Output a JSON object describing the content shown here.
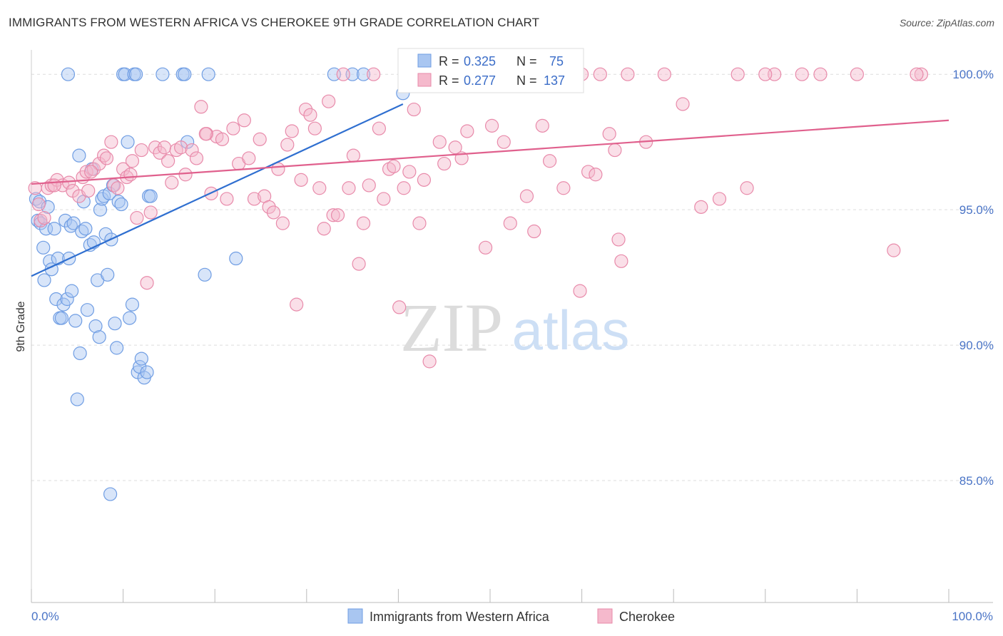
{
  "chart_data": {
    "type": "scatter",
    "title": "IMMIGRANTS FROM WESTERN AFRICA VS CHEROKEE 9TH GRADE CORRELATION CHART",
    "source": "Source: ZipAtlas.com",
    "ylabel": "9th Grade",
    "xlim": [
      0,
      100
    ],
    "ylim": [
      80.5,
      100.9
    ],
    "y_ticks": [
      {
        "value": 100,
        "label": "100.0%"
      },
      {
        "value": 95,
        "label": "95.0%"
      },
      {
        "value": 90,
        "label": "90.0%"
      },
      {
        "value": 85,
        "label": "85.0%"
      }
    ],
    "x_tick_labels": {
      "left": "0.0%",
      "right": "100.0%"
    },
    "x_minor_ticks": [
      0,
      10,
      20,
      30,
      40,
      50,
      60,
      70,
      80,
      90,
      100
    ],
    "watermark": {
      "zip": "ZIP",
      "atlas": "atlas"
    },
    "legend": {
      "r_label": "R =",
      "n_label": "N =",
      "entries": [
        {
          "r": "0.325",
          "n": "75"
        },
        {
          "r": "0.277",
          "n": "137"
        }
      ]
    },
    "series": [
      {
        "name": "Immigrants from Western Africa",
        "color": "#6f9de3",
        "fill": "#a9c6f1",
        "trend": {
          "x0": 0,
          "y0": 92.55,
          "x1": 40.5,
          "y1": 98.9
        },
        "points": [
          [
            0.5,
            95.4
          ],
          [
            0.7,
            94.6
          ],
          [
            0.9,
            95.3
          ],
          [
            1.0,
            94.5
          ],
          [
            1.3,
            93.6
          ],
          [
            1.4,
            92.4
          ],
          [
            1.6,
            94.3
          ],
          [
            1.8,
            95.1
          ],
          [
            2.0,
            93.1
          ],
          [
            2.2,
            92.8
          ],
          [
            2.5,
            94.3
          ],
          [
            2.7,
            91.7
          ],
          [
            2.9,
            93.2
          ],
          [
            3.1,
            91.0
          ],
          [
            3.3,
            91.0
          ],
          [
            3.5,
            91.5
          ],
          [
            3.7,
            94.6
          ],
          [
            3.9,
            91.7
          ],
          [
            4.1,
            93.2
          ],
          [
            4.3,
            94.4
          ],
          [
            4.4,
            92.0
          ],
          [
            4.6,
            94.5
          ],
          [
            4.8,
            90.9
          ],
          [
            5.0,
            88.0
          ],
          [
            5.2,
            97.0
          ],
          [
            5.3,
            89.7
          ],
          [
            5.5,
            94.2
          ],
          [
            5.7,
            95.3
          ],
          [
            5.9,
            94.3
          ],
          [
            6.1,
            91.3
          ],
          [
            6.4,
            93.7
          ],
          [
            6.6,
            96.5
          ],
          [
            6.8,
            93.8
          ],
          [
            7.0,
            90.7
          ],
          [
            7.2,
            92.4
          ],
          [
            7.4,
            90.3
          ],
          [
            7.5,
            95.0
          ],
          [
            7.7,
            95.4
          ],
          [
            7.9,
            95.5
          ],
          [
            8.1,
            94.1
          ],
          [
            8.3,
            92.6
          ],
          [
            8.5,
            95.6
          ],
          [
            8.7,
            93.9
          ],
          [
            8.9,
            95.9
          ],
          [
            9.1,
            90.8
          ],
          [
            9.3,
            89.9
          ],
          [
            9.5,
            95.3
          ],
          [
            9.8,
            95.2
          ],
          [
            10.0,
            100.0
          ],
          [
            10.2,
            100.0
          ],
          [
            10.5,
            97.5
          ],
          [
            10.7,
            91.0
          ],
          [
            11.0,
            91.5
          ],
          [
            11.2,
            100.0
          ],
          [
            11.4,
            100.0
          ],
          [
            11.6,
            89.0
          ],
          [
            11.8,
            89.2
          ],
          [
            12.0,
            89.5
          ],
          [
            12.3,
            88.8
          ],
          [
            12.6,
            89.0
          ],
          [
            12.8,
            95.5
          ],
          [
            13.0,
            95.5
          ],
          [
            14.3,
            100.0
          ],
          [
            16.5,
            100.0
          ],
          [
            16.7,
            100.0
          ],
          [
            17.0,
            97.5
          ],
          [
            18.9,
            92.6
          ],
          [
            19.3,
            100.0
          ],
          [
            22.3,
            93.2
          ],
          [
            33.0,
            100.0
          ],
          [
            35.0,
            100.0
          ],
          [
            36.2,
            100.0
          ],
          [
            40.5,
            99.3
          ],
          [
            8.6,
            84.5
          ],
          [
            4.0,
            100.0
          ]
        ]
      },
      {
        "name": "Cherokee",
        "color": "#e88aaa",
        "fill": "#f5b9cc",
        "trend": {
          "x0": 0,
          "y0": 95.95,
          "x1": 100,
          "y1": 98.3
        },
        "points": [
          [
            0.4,
            95.8
          ],
          [
            0.8,
            95.2
          ],
          [
            1.0,
            94.6
          ],
          [
            1.4,
            94.7
          ],
          [
            1.8,
            95.8
          ],
          [
            2.2,
            95.9
          ],
          [
            2.8,
            96.1
          ],
          [
            3.4,
            95.9
          ],
          [
            4.1,
            96.0
          ],
          [
            4.5,
            95.7
          ],
          [
            5.2,
            95.5
          ],
          [
            5.6,
            96.2
          ],
          [
            6.0,
            96.4
          ],
          [
            6.2,
            95.7
          ],
          [
            6.8,
            96.5
          ],
          [
            7.4,
            96.7
          ],
          [
            7.9,
            97.0
          ],
          [
            8.2,
            96.9
          ],
          [
            8.7,
            97.5
          ],
          [
            9.0,
            95.9
          ],
          [
            9.4,
            95.8
          ],
          [
            10.0,
            96.5
          ],
          [
            10.4,
            96.2
          ],
          [
            11.0,
            96.8
          ],
          [
            11.5,
            94.7
          ],
          [
            12.0,
            97.2
          ],
          [
            12.6,
            92.3
          ],
          [
            13.0,
            94.9
          ],
          [
            13.5,
            97.3
          ],
          [
            14.0,
            97.1
          ],
          [
            14.5,
            97.3
          ],
          [
            14.9,
            96.8
          ],
          [
            15.3,
            96.0
          ],
          [
            15.8,
            97.2
          ],
          [
            16.3,
            97.3
          ],
          [
            16.8,
            96.3
          ],
          [
            17.5,
            97.2
          ],
          [
            18.0,
            96.9
          ],
          [
            18.5,
            98.8
          ],
          [
            19.1,
            97.8
          ],
          [
            19.6,
            95.6
          ],
          [
            20.2,
            97.7
          ],
          [
            20.8,
            97.6
          ],
          [
            21.3,
            95.4
          ],
          [
            22.0,
            98.0
          ],
          [
            22.6,
            96.7
          ],
          [
            23.2,
            98.3
          ],
          [
            23.7,
            96.9
          ],
          [
            24.3,
            95.4
          ],
          [
            24.9,
            97.6
          ],
          [
            25.4,
            95.5
          ],
          [
            25.9,
            95.1
          ],
          [
            26.4,
            94.9
          ],
          [
            26.9,
            96.5
          ],
          [
            27.4,
            94.5
          ],
          [
            27.9,
            97.4
          ],
          [
            28.4,
            97.9
          ],
          [
            28.9,
            91.5
          ],
          [
            29.4,
            96.1
          ],
          [
            29.9,
            98.7
          ],
          [
            30.4,
            98.5
          ],
          [
            30.9,
            98.0
          ],
          [
            31.4,
            95.8
          ],
          [
            31.9,
            94.3
          ],
          [
            32.4,
            99.0
          ],
          [
            32.9,
            94.8
          ],
          [
            33.4,
            94.8
          ],
          [
            34.0,
            100.0
          ],
          [
            34.6,
            95.8
          ],
          [
            35.1,
            97.0
          ],
          [
            35.7,
            93.0
          ],
          [
            36.2,
            94.5
          ],
          [
            36.8,
            95.9
          ],
          [
            37.3,
            100.0
          ],
          [
            37.9,
            98.0
          ],
          [
            38.4,
            95.4
          ],
          [
            39.0,
            96.5
          ],
          [
            39.5,
            96.6
          ],
          [
            40.1,
            91.4
          ],
          [
            40.6,
            95.8
          ],
          [
            41.2,
            96.4
          ],
          [
            41.7,
            98.7
          ],
          [
            42.3,
            94.5
          ],
          [
            42.8,
            96.1
          ],
          [
            43.4,
            89.4
          ],
          [
            43.9,
            100.0
          ],
          [
            44.5,
            97.5
          ],
          [
            45.0,
            96.7
          ],
          [
            45.6,
            100.0
          ],
          [
            46.2,
            97.3
          ],
          [
            46.9,
            96.9
          ],
          [
            47.5,
            97.9
          ],
          [
            48.2,
            100.0
          ],
          [
            48.9,
            100.0
          ],
          [
            49.5,
            93.6
          ],
          [
            50.2,
            98.1
          ],
          [
            50.9,
            100.0
          ],
          [
            51.5,
            97.5
          ],
          [
            52.2,
            94.5
          ],
          [
            53.1,
            100.0
          ],
          [
            54.0,
            95.5
          ],
          [
            54.8,
            94.2
          ],
          [
            55.7,
            98.1
          ],
          [
            56.5,
            96.8
          ],
          [
            57.3,
            100.0
          ],
          [
            58.0,
            95.8
          ],
          [
            58.8,
            100.0
          ],
          [
            59.8,
            92.0
          ],
          [
            60.7,
            96.4
          ],
          [
            61.5,
            96.3
          ],
          [
            62.0,
            100.0
          ],
          [
            63.0,
            97.8
          ],
          [
            63.6,
            97.2
          ],
          [
            64.0,
            93.9
          ],
          [
            64.3,
            93.1
          ],
          [
            65.0,
            100.0
          ],
          [
            67.0,
            97.5
          ],
          [
            69.0,
            100.0
          ],
          [
            71.0,
            98.9
          ],
          [
            73.0,
            95.1
          ],
          [
            75.0,
            95.4
          ],
          [
            77.0,
            100.0
          ],
          [
            78.0,
            95.8
          ],
          [
            81.0,
            100.0
          ],
          [
            84.0,
            100.0
          ],
          [
            86.0,
            100.0
          ],
          [
            90.0,
            100.0
          ],
          [
            94.0,
            93.5
          ],
          [
            97.0,
            100.0
          ],
          [
            2.5,
            95.9
          ],
          [
            6.5,
            96.4
          ],
          [
            10.8,
            96.3
          ],
          [
            19.0,
            97.8
          ],
          [
            55.0,
            100.0
          ],
          [
            60.0,
            100.0
          ],
          [
            80.0,
            100.0
          ],
          [
            96.5,
            100.0
          ]
        ]
      }
    ]
  }
}
